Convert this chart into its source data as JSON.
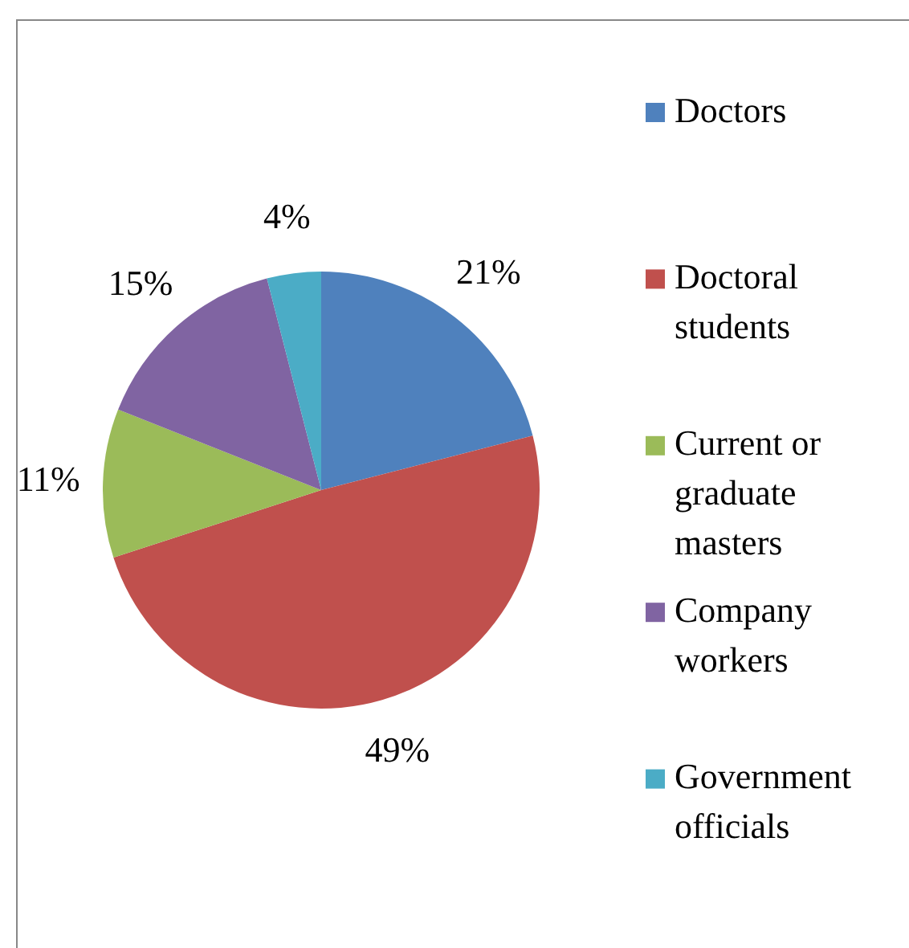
{
  "chart_data": {
    "type": "pie",
    "categories": [
      "Doctors",
      "Doctoral students",
      "Current or graduate masters",
      "Company workers",
      "Government officials"
    ],
    "values": [
      21,
      49,
      11,
      15,
      4
    ],
    "colors": [
      "#4f81bd",
      "#c0504d",
      "#9bbb59",
      "#8064a2",
      "#4bacc6"
    ],
    "value_labels": [
      "21%",
      "49%",
      "11%",
      "15%",
      "4%"
    ],
    "legend": "right"
  }
}
